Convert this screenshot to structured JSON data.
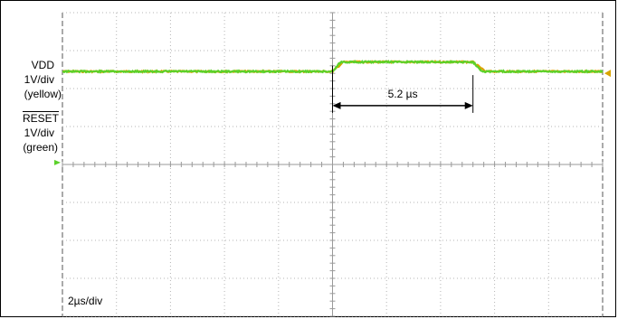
{
  "chart_data": {
    "type": "line",
    "title": "",
    "channels": [
      {
        "name": "VDD",
        "scale": "1V/div",
        "color_name": "(yellow)",
        "color": "#d9a400"
      },
      {
        "name": "RESET",
        "scale": "1V/div",
        "color_name": "(green)",
        "color": "#5bd12a"
      }
    ],
    "timebase": "2µs/div",
    "x_divisions": 10,
    "y_divisions": 8,
    "x_unit": "µs",
    "y_unit": "div",
    "xlim": [
      0,
      20
    ],
    "ylim": [
      0,
      8
    ],
    "grid": true,
    "trace_levels": {
      "high": 1.55,
      "low": 1.3
    },
    "dip": {
      "start": 10,
      "end": 15.2
    },
    "annotation": {
      "text": "5.2 µs",
      "from": 10,
      "to": 15.2,
      "level": 0.9
    },
    "trigger_marker_color": "#d9a400"
  }
}
